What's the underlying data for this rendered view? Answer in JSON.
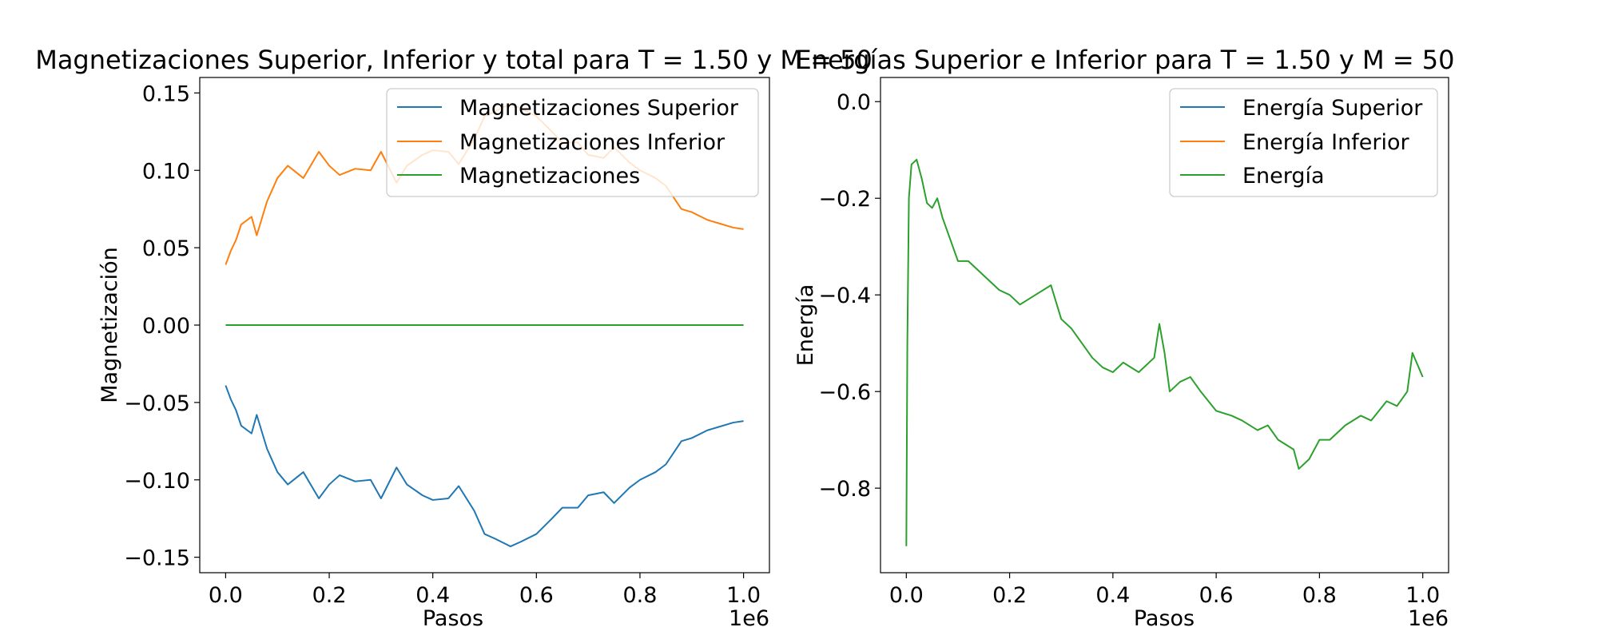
{
  "chart_data": [
    {
      "type": "line",
      "title": "Magnetizaciones Superior, Inferior y total para T = 1.50 y M = 50",
      "xlabel": "Pasos",
      "ylabel": "Magnetización",
      "x_offset_label": "1e6",
      "xlim": [
        -0.05,
        1.05
      ],
      "ylim": [
        -0.16,
        0.16
      ],
      "xticks": [
        0.0,
        0.2,
        0.4,
        0.6,
        0.8,
        1.0
      ],
      "xtick_labels": [
        "0.0",
        "0.2",
        "0.4",
        "0.6",
        "0.8",
        "1.0"
      ],
      "yticks": [
        -0.15,
        -0.1,
        -0.05,
        0.0,
        0.05,
        0.1,
        0.15
      ],
      "ytick_labels": [
        "−0.15",
        "−0.10",
        "−0.05",
        "0.00",
        "0.05",
        "0.10",
        "0.15"
      ],
      "legend_position": "top-right",
      "grid": false,
      "series": [
        {
          "name": "Magnetizaciones Superior",
          "color": "#1f77b4",
          "x": [
            0.0,
            0.01,
            0.02,
            0.03,
            0.05,
            0.06,
            0.08,
            0.1,
            0.12,
            0.15,
            0.18,
            0.2,
            0.22,
            0.25,
            0.28,
            0.3,
            0.33,
            0.35,
            0.38,
            0.4,
            0.43,
            0.45,
            0.48,
            0.5,
            0.52,
            0.55,
            0.57,
            0.6,
            0.63,
            0.65,
            0.68,
            0.7,
            0.73,
            0.75,
            0.78,
            0.8,
            0.83,
            0.85,
            0.88,
            0.9,
            0.93,
            0.95,
            0.98,
            1.0
          ],
          "y": [
            -0.039,
            -0.048,
            -0.055,
            -0.065,
            -0.07,
            -0.058,
            -0.08,
            -0.095,
            -0.103,
            -0.095,
            -0.112,
            -0.103,
            -0.097,
            -0.101,
            -0.1,
            -0.112,
            -0.092,
            -0.103,
            -0.11,
            -0.113,
            -0.112,
            -0.104,
            -0.12,
            -0.135,
            -0.138,
            -0.143,
            -0.14,
            -0.135,
            -0.125,
            -0.118,
            -0.118,
            -0.11,
            -0.108,
            -0.115,
            -0.105,
            -0.1,
            -0.095,
            -0.09,
            -0.075,
            -0.073,
            -0.068,
            -0.066,
            -0.063,
            -0.062
          ]
        },
        {
          "name": "Magnetizaciones Inferior",
          "color": "#ff7f0e",
          "x": [
            0.0,
            0.01,
            0.02,
            0.03,
            0.05,
            0.06,
            0.08,
            0.1,
            0.12,
            0.15,
            0.18,
            0.2,
            0.22,
            0.25,
            0.28,
            0.3,
            0.33,
            0.35,
            0.38,
            0.4,
            0.43,
            0.45,
            0.48,
            0.5,
            0.52,
            0.55,
            0.57,
            0.6,
            0.63,
            0.65,
            0.68,
            0.7,
            0.73,
            0.75,
            0.78,
            0.8,
            0.83,
            0.85,
            0.88,
            0.9,
            0.93,
            0.95,
            0.98,
            1.0
          ],
          "y": [
            0.039,
            0.048,
            0.055,
            0.065,
            0.07,
            0.058,
            0.08,
            0.095,
            0.103,
            0.095,
            0.112,
            0.103,
            0.097,
            0.101,
            0.1,
            0.112,
            0.092,
            0.103,
            0.11,
            0.113,
            0.112,
            0.104,
            0.12,
            0.135,
            0.138,
            0.143,
            0.14,
            0.135,
            0.125,
            0.118,
            0.118,
            0.11,
            0.108,
            0.115,
            0.105,
            0.1,
            0.095,
            0.09,
            0.075,
            0.073,
            0.068,
            0.066,
            0.063,
            0.062
          ]
        },
        {
          "name": "Magnetizaciones",
          "color": "#2ca02c",
          "x": [
            0.0,
            1.0
          ],
          "y": [
            0.0,
            0.0
          ]
        }
      ]
    },
    {
      "type": "line",
      "title": "Energías Superior e Inferior para T = 1.50 y M = 50",
      "xlabel": "Pasos",
      "ylabel": "Energía",
      "x_offset_label": "1e6",
      "xlim": [
        -0.05,
        1.05
      ],
      "ylim": [
        -0.975,
        0.05
      ],
      "xticks": [
        0.0,
        0.2,
        0.4,
        0.6,
        0.8,
        1.0
      ],
      "xtick_labels": [
        "0.0",
        "0.2",
        "0.4",
        "0.6",
        "0.8",
        "1.0"
      ],
      "yticks": [
        -0.8,
        -0.6,
        -0.4,
        -0.2,
        0.0
      ],
      "ytick_labels": [
        "−0.8",
        "−0.6",
        "−0.4",
        "−0.2",
        "0.0"
      ],
      "legend_position": "top-right",
      "grid": false,
      "series": [
        {
          "name": "Energía Superior",
          "color": "#1f77b4",
          "x": [],
          "y": []
        },
        {
          "name": "Energía Inferior",
          "color": "#ff7f0e",
          "x": [],
          "y": []
        },
        {
          "name": "Energía",
          "color": "#2ca02c",
          "x": [
            0.0,
            0.002,
            0.005,
            0.01,
            0.02,
            0.03,
            0.04,
            0.05,
            0.06,
            0.07,
            0.08,
            0.1,
            0.12,
            0.15,
            0.18,
            0.2,
            0.22,
            0.25,
            0.28,
            0.3,
            0.32,
            0.34,
            0.36,
            0.38,
            0.4,
            0.42,
            0.45,
            0.48,
            0.49,
            0.5,
            0.51,
            0.53,
            0.55,
            0.57,
            0.6,
            0.63,
            0.65,
            0.68,
            0.7,
            0.72,
            0.75,
            0.76,
            0.78,
            0.8,
            0.82,
            0.85,
            0.88,
            0.9,
            0.93,
            0.95,
            0.97,
            0.98,
            1.0
          ],
          "y": [
            -0.92,
            -0.5,
            -0.2,
            -0.13,
            -0.12,
            -0.16,
            -0.21,
            -0.22,
            -0.2,
            -0.24,
            -0.27,
            -0.33,
            -0.33,
            -0.36,
            -0.39,
            -0.4,
            -0.42,
            -0.4,
            -0.38,
            -0.45,
            -0.47,
            -0.5,
            -0.53,
            -0.55,
            -0.56,
            -0.54,
            -0.56,
            -0.53,
            -0.46,
            -0.52,
            -0.6,
            -0.58,
            -0.57,
            -0.6,
            -0.64,
            -0.65,
            -0.66,
            -0.68,
            -0.67,
            -0.7,
            -0.72,
            -0.76,
            -0.74,
            -0.7,
            -0.7,
            -0.67,
            -0.65,
            -0.66,
            -0.62,
            -0.63,
            -0.6,
            -0.52,
            -0.57
          ]
        }
      ]
    }
  ]
}
